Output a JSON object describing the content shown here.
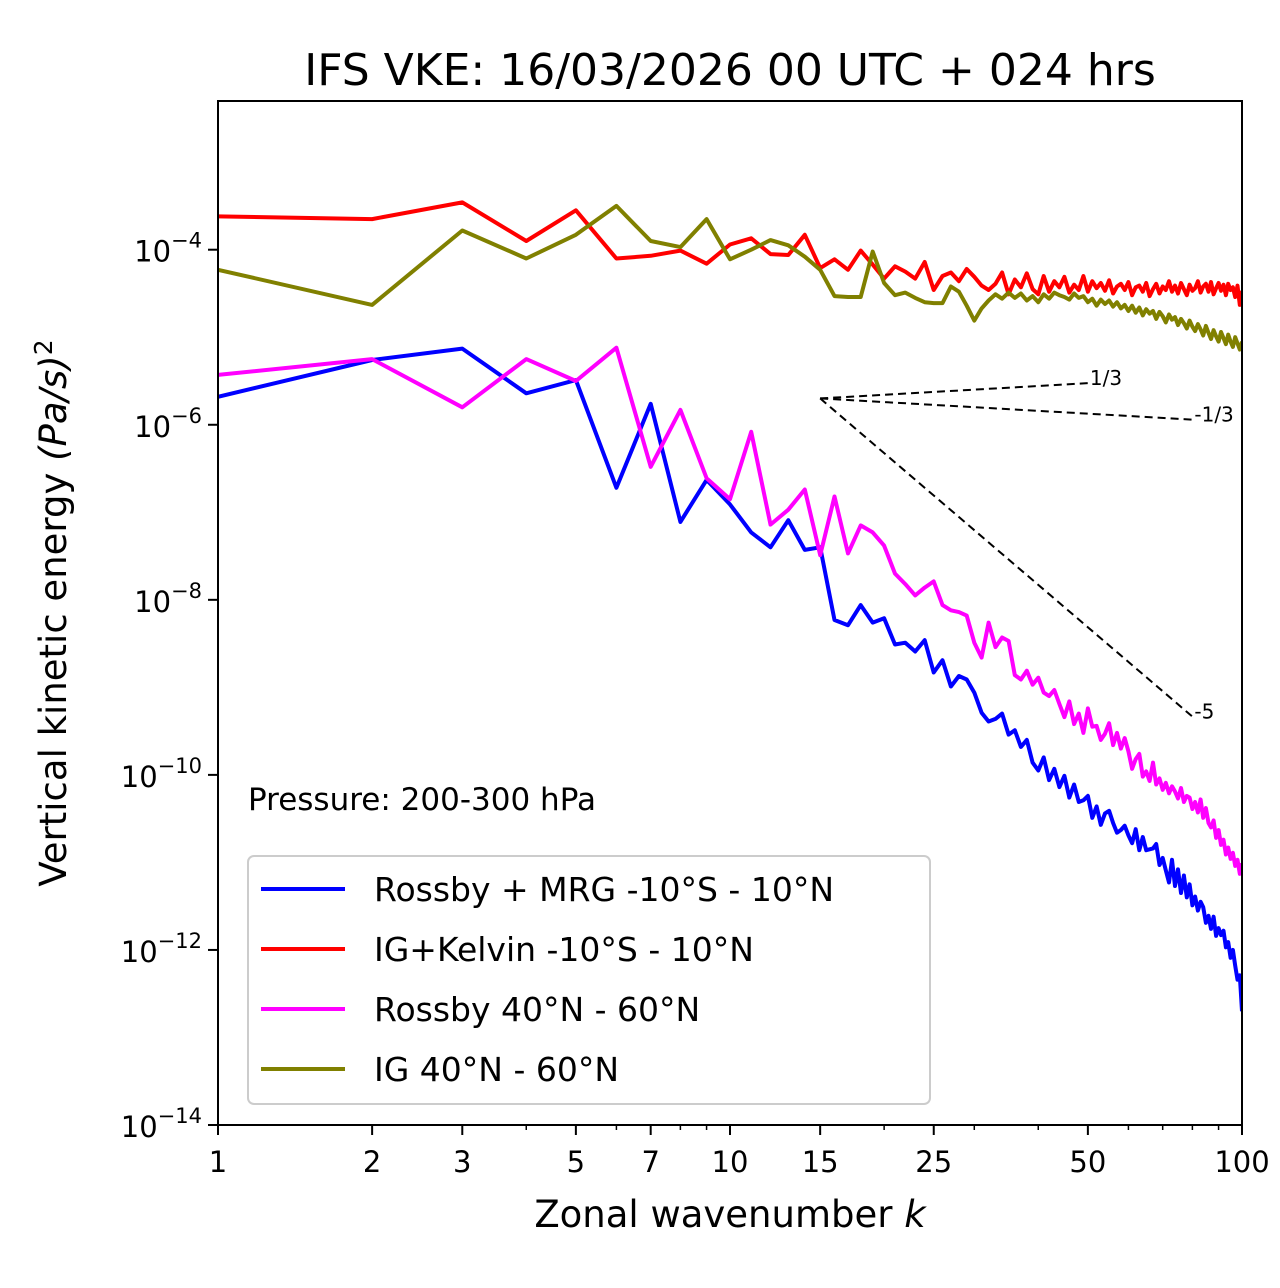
{
  "chart_data": {
    "type": "line",
    "title": "IFS VKE: 16/03/2026 00 UTC + 024 hrs",
    "xlabel": "Zonal wavenumber",
    "xlabel_var": "k",
    "ylabel": "Vertical kinetic energy",
    "ylabel_unit": "(Pa/s)",
    "ylabel_unit_exp": "2",
    "xscale": "log",
    "yscale": "log",
    "xlim": [
      1,
      100
    ],
    "ylim": [
      1e-14,
      0.005
    ],
    "grid": false,
    "x_ticks": [
      {
        "value": 1,
        "label": "1"
      },
      {
        "value": 2,
        "label": "2"
      },
      {
        "value": 3,
        "label": "3"
      },
      {
        "value": 5,
        "label": "5"
      },
      {
        "value": 7,
        "label": "7"
      },
      {
        "value": 10,
        "label": "10"
      },
      {
        "value": 15,
        "label": "15"
      },
      {
        "value": 25,
        "label": "25"
      },
      {
        "value": 50,
        "label": "50"
      },
      {
        "value": 100,
        "label": "100"
      }
    ],
    "x_minor_ticks": [
      4,
      6,
      8,
      9,
      20,
      30,
      40,
      60,
      70,
      80,
      90
    ],
    "y_ticks": [
      {
        "exp": -4,
        "base": "10",
        "sup": "−4"
      },
      {
        "exp": -6,
        "base": "10",
        "sup": "−6"
      },
      {
        "exp": -8,
        "base": "10",
        "sup": "−8"
      },
      {
        "exp": -10,
        "base": "10",
        "sup": "−10"
      },
      {
        "exp": -12,
        "base": "10",
        "sup": "−12"
      },
      {
        "exp": -14,
        "base": "10",
        "sup": "−14"
      }
    ],
    "annotation": "Pressure: 200-300 hPa",
    "legend_position": "lower-left",
    "reference_slopes": {
      "origin_k": 15,
      "origin_value": 2e-06,
      "lines": [
        {
          "slope": "1/3",
          "exponent": 0.3333,
          "end_k": 50,
          "label": "1/3"
        },
        {
          "slope": "-1/3",
          "exponent": -0.3333,
          "end_k": 80,
          "label": "-1/3"
        },
        {
          "slope": "-5",
          "exponent": -5,
          "end_k": 80,
          "label": "-5"
        }
      ]
    },
    "x": "integers 1..100 (log10 values below, one per k)",
    "series": [
      {
        "name": "Rossby + MRG -10°S - 10°N",
        "color": "#0000ff",
        "log10_values": [
          -5.68,
          -5.26,
          -5.13,
          -5.64,
          -5.49,
          -6.72,
          -5.76,
          -7.11,
          -6.63,
          -6.91,
          -7.23,
          -7.4,
          -7.09,
          -7.43,
          -7.4,
          -8.23,
          -8.29,
          -8.06,
          -8.26,
          -8.21,
          -8.51,
          -8.49,
          -8.59,
          -8.46,
          -8.83,
          -8.69,
          -8.99,
          -8.87,
          -8.91,
          -9.06,
          -9.29,
          -9.39,
          -9.36,
          -9.3,
          -9.54,
          -9.49,
          -9.68,
          -9.6,
          -9.86,
          -9.95,
          -9.8,
          -10.06,
          -9.93,
          -10.14,
          -10.01,
          -10.26,
          -10.11,
          -10.31,
          -10.29,
          -10.24,
          -10.49,
          -10.36,
          -10.57,
          -10.44,
          -10.41,
          -10.55,
          -10.66,
          -10.63,
          -10.58,
          -10.69,
          -10.78,
          -10.62,
          -10.86,
          -10.71,
          -10.86,
          -10.85,
          -10.84,
          -10.79,
          -11.03,
          -10.95,
          -11.09,
          -11.23,
          -10.97,
          -11.27,
          -11.08,
          -11.35,
          -11.15,
          -11.4,
          -11.25,
          -11.49,
          -11.39,
          -11.55,
          -11.45,
          -11.51,
          -11.69,
          -11.61,
          -11.76,
          -11.62,
          -11.84,
          -11.75,
          -11.83,
          -11.78,
          -11.97,
          -11.91,
          -12.09,
          -12.0,
          -12.18,
          -12.34,
          -12.29,
          -12.7
        ]
      },
      {
        "name": "IG+Kelvin -10°S - 10°N",
        "color": "#ff0000",
        "log10_values": [
          -3.62,
          -3.65,
          -3.46,
          -3.9,
          -3.55,
          -4.1,
          -4.07,
          -4.01,
          -4.16,
          -3.94,
          -3.87,
          -4.05,
          -4.06,
          -3.83,
          -4.21,
          -4.11,
          -4.23,
          -4.01,
          -4.17,
          -4.33,
          -4.19,
          -4.25,
          -4.33,
          -4.14,
          -4.46,
          -4.3,
          -4.26,
          -4.36,
          -4.22,
          -4.31,
          -4.41,
          -4.46,
          -4.39,
          -4.26,
          -4.51,
          -4.34,
          -4.43,
          -4.27,
          -4.45,
          -4.51,
          -4.3,
          -4.48,
          -4.36,
          -4.43,
          -4.31,
          -4.49,
          -4.4,
          -4.46,
          -4.3,
          -4.48,
          -4.36,
          -4.44,
          -4.38,
          -4.47,
          -4.35,
          -4.5,
          -4.42,
          -4.39,
          -4.46,
          -4.37,
          -4.52,
          -4.43,
          -4.41,
          -4.48,
          -4.38,
          -4.53,
          -4.45,
          -4.39,
          -4.5,
          -4.42,
          -4.46,
          -4.36,
          -4.48,
          -4.41,
          -4.5,
          -4.38,
          -4.45,
          -4.52,
          -4.4,
          -4.47,
          -4.44,
          -4.36,
          -4.49,
          -4.42,
          -4.39,
          -4.48,
          -4.37,
          -4.51,
          -4.44,
          -4.38,
          -4.47,
          -4.4,
          -4.52,
          -4.39,
          -4.46,
          -4.43,
          -4.54,
          -4.41,
          -4.63,
          -4.47
        ]
      },
      {
        "name": "Rossby 40°N - 60°N",
        "color": "#ff00ff",
        "log10_values": [
          -5.43,
          -5.25,
          -5.8,
          -5.25,
          -5.5,
          -5.12,
          -6.48,
          -5.83,
          -6.61,
          -6.85,
          -6.08,
          -7.14,
          -6.97,
          -6.74,
          -7.49,
          -6.82,
          -7.47,
          -7.15,
          -7.23,
          -7.38,
          -7.7,
          -7.82,
          -7.95,
          -7.86,
          -7.79,
          -8.06,
          -8.12,
          -8.14,
          -8.18,
          -8.49,
          -8.66,
          -8.26,
          -8.54,
          -8.43,
          -8.47,
          -8.86,
          -8.91,
          -8.81,
          -8.97,
          -8.89,
          -9.06,
          -9.1,
          -9.03,
          -9.19,
          -9.34,
          -9.16,
          -9.42,
          -9.3,
          -9.52,
          -9.24,
          -9.45,
          -9.44,
          -9.6,
          -9.53,
          -9.41,
          -9.66,
          -9.52,
          -9.7,
          -9.58,
          -9.73,
          -9.93,
          -9.82,
          -9.76,
          -10.02,
          -9.96,
          -10.07,
          -9.86,
          -10.11,
          -10.04,
          -10.17,
          -10.09,
          -10.21,
          -10.13,
          -10.19,
          -10.27,
          -10.15,
          -10.31,
          -10.24,
          -10.26,
          -10.39,
          -10.31,
          -10.43,
          -10.28,
          -10.49,
          -10.38,
          -10.55,
          -10.6,
          -10.52,
          -10.72,
          -10.63,
          -10.8,
          -10.74,
          -10.91,
          -10.83,
          -10.96,
          -10.89,
          -11.04,
          -10.97,
          -11.13,
          -11.01
        ]
      },
      {
        "name": "IG 40°N - 60°N",
        "color": "#808000",
        "log10_values": [
          -4.23,
          -4.63,
          -3.78,
          -4.1,
          -3.83,
          -3.5,
          -3.9,
          -3.97,
          -3.65,
          -4.11,
          -4.0,
          -3.89,
          -3.95,
          -4.08,
          -4.23,
          -4.53,
          -4.54,
          -4.54,
          -4.02,
          -4.38,
          -4.52,
          -4.49,
          -4.55,
          -4.6,
          -4.61,
          -4.61,
          -4.42,
          -4.48,
          -4.64,
          -4.81,
          -4.67,
          -4.58,
          -4.51,
          -4.56,
          -4.49,
          -4.55,
          -4.5,
          -4.58,
          -4.53,
          -4.6,
          -4.51,
          -4.56,
          -4.49,
          -4.52,
          -4.54,
          -4.57,
          -4.5,
          -4.55,
          -4.53,
          -4.6,
          -4.56,
          -4.64,
          -4.57,
          -4.62,
          -4.58,
          -4.65,
          -4.6,
          -4.67,
          -4.63,
          -4.7,
          -4.64,
          -4.72,
          -4.66,
          -4.75,
          -4.68,
          -4.73,
          -4.7,
          -4.79,
          -4.71,
          -4.76,
          -4.83,
          -4.74,
          -4.8,
          -4.77,
          -4.86,
          -4.79,
          -4.84,
          -4.9,
          -4.81,
          -4.88,
          -4.93,
          -4.85,
          -4.91,
          -4.98,
          -4.87,
          -4.95,
          -5.02,
          -4.92,
          -4.99,
          -5.05,
          -4.94,
          -5.01,
          -5.08,
          -4.97,
          -5.05,
          -5.11,
          -5.0,
          -5.07,
          -5.14,
          -5.05
        ]
      }
    ]
  }
}
